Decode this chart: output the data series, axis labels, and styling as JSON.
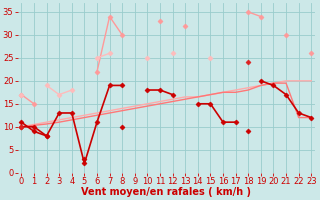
{
  "title": "",
  "xlabel": "Vent moyen/en rafales ( km/h )",
  "ylabel": "",
  "bg_color": "#cce8e8",
  "grid_color": "#99cccc",
  "x": [
    0,
    1,
    2,
    3,
    4,
    5,
    6,
    7,
    8,
    9,
    10,
    11,
    12,
    13,
    14,
    15,
    16,
    17,
    18,
    19,
    20,
    21,
    22,
    23
  ],
  "lines": [
    {
      "y": [
        17,
        15,
        null,
        null,
        null,
        null,
        22,
        34,
        30,
        null,
        null,
        33,
        null,
        32,
        null,
        null,
        null,
        null,
        35,
        34,
        null,
        30,
        null,
        26
      ],
      "color": "#ff9999",
      "lw": 1.0,
      "marker": "D",
      "ms": 2.5
    },
    {
      "y": [
        17,
        null,
        19,
        17,
        18,
        null,
        25,
        26,
        null,
        null,
        25,
        null,
        26,
        null,
        null,
        25,
        null,
        null,
        null,
        null,
        null,
        null,
        null,
        null
      ],
      "color": "#ffbbbb",
      "lw": 1.0,
      "marker": "D",
      "ms": 2.5
    },
    {
      "y": [
        10,
        10.5,
        11,
        11.5,
        12,
        12.5,
        13,
        13.5,
        14,
        14.5,
        15,
        15.5,
        16,
        16.5,
        16.5,
        17,
        17.5,
        18,
        18.5,
        19,
        19.5,
        20,
        20,
        20
      ],
      "color": "#ffaaaa",
      "lw": 1.0,
      "marker": null,
      "ms": 0
    },
    {
      "y": [
        10,
        10.3,
        10.6,
        11,
        11.5,
        12,
        12.5,
        13,
        13.5,
        14,
        14.5,
        15,
        15.5,
        16,
        16.5,
        17,
        17.5,
        17.5,
        18,
        19,
        19.5,
        19.5,
        12,
        12
      ],
      "color": "#ff7777",
      "lw": 1.0,
      "marker": null,
      "ms": 0
    },
    {
      "y": [
        10,
        10,
        8,
        13,
        13,
        2,
        11,
        19,
        19,
        null,
        18,
        18,
        17,
        null,
        15,
        15,
        11,
        11,
        null,
        20,
        19,
        17,
        13,
        12
      ],
      "color": "#cc0000",
      "lw": 1.2,
      "marker": "D",
      "ms": 2.5
    },
    {
      "y": [
        11,
        9,
        8,
        null,
        null,
        3,
        null,
        null,
        10,
        null,
        null,
        null,
        null,
        null,
        null,
        null,
        null,
        null,
        9,
        null,
        null,
        null,
        null,
        null
      ],
      "color": "#cc0000",
      "lw": 1.2,
      "marker": "D",
      "ms": 2.5
    },
    {
      "y": [
        10,
        null,
        null,
        null,
        null,
        null,
        null,
        null,
        null,
        null,
        null,
        null,
        null,
        null,
        null,
        null,
        null,
        null,
        24,
        null,
        null,
        null,
        null,
        null
      ],
      "color": "#dd2222",
      "lw": 1.2,
      "marker": "D",
      "ms": 2.5
    }
  ],
  "xlim": [
    -0.3,
    23.3
  ],
  "ylim": [
    0,
    37
  ],
  "yticks": [
    0,
    5,
    10,
    15,
    20,
    25,
    30,
    35
  ],
  "xticks": [
    0,
    1,
    2,
    3,
    4,
    5,
    6,
    7,
    8,
    9,
    10,
    11,
    12,
    13,
    14,
    15,
    16,
    17,
    18,
    19,
    20,
    21,
    22,
    23
  ],
  "tick_color": "#cc0000",
  "label_color": "#cc0000",
  "xlabel_fontsize": 7,
  "tick_fontsize": 6
}
